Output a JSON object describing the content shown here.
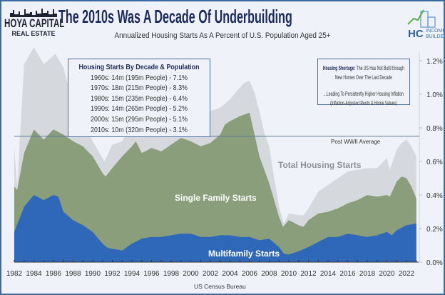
{
  "header": {
    "title": "The 2010s Was A Decade Of Underbuilding",
    "subtitle": "Annualized Housing Starts As A Percent of U.S. Population Aged 25+",
    "logo_left_line1": "HOYA CAPITAL",
    "logo_left_line2": "REAL ESTATE",
    "logo_right_hc": "HC",
    "logo_right_line1": "INCOME",
    "logo_right_line2": "BUILDER"
  },
  "decade_box": {
    "heading": "Housing Starts By Decade & Population",
    "rows": [
      "1960s: 14m (195m People) - 7.1%",
      "1970s: 18m (215m People) - 8.3%",
      "1980s: 15m (235m People) - 6.4%",
      "1990s: 14m (265m People) - 5.2%",
      "2000s: 15m (295m People) - 5.1%",
      "2010s: 10m (320m People) - 3.1%"
    ]
  },
  "shortage_box": {
    "bold": "Housing Shortage:",
    "line1": "The US Has Not Built Enough",
    "line2": "New Homes Over The Last Decade",
    "line3": "...Leading To Persistently Higher Housing Inflation",
    "line4": "(Inflation-Adjusted Rents & Home Values)"
  },
  "source": "US Census Bureau",
  "colors": {
    "total": "#d5d8dd",
    "single_family": "#8b9e7b",
    "multifamily": "#2f68b8",
    "title": "#1c2a5c",
    "average_line": "#5c7a99"
  },
  "chart_data": {
    "type": "area",
    "title": "The 2010s Was A Decade Of Underbuilding",
    "subtitle": "Annualized Housing Starts As A Percent of U.S. Population Aged 25+",
    "xlim": [
      1982,
      2023
    ],
    "ylim": [
      0,
      1.2
    ],
    "y_axis_position": "right",
    "x_ticks": [
      "1982",
      "1984",
      "1986",
      "1988",
      "1990",
      "1992",
      "1994",
      "1996",
      "1998",
      "2000",
      "2002",
      "2004",
      "2006",
      "2008",
      "2010",
      "2012",
      "2014",
      "2016",
      "2018",
      "2020",
      "2022"
    ],
    "y_ticks": [
      "0.0%",
      "0.2%",
      "0.4%",
      "0.6%",
      "0.8%",
      "1.0%",
      "1.2%"
    ],
    "reference_line": {
      "label": "Post WWII Average",
      "value": 0.75
    },
    "series": [
      {
        "name": "Total Housing Starts",
        "points": [
          [
            1982,
            0.68
          ],
          [
            1982.3,
            0.45
          ],
          [
            1983,
            1.18
          ],
          [
            1984,
            1.28
          ],
          [
            1985,
            1.18
          ],
          [
            1986.2,
            1.24
          ],
          [
            1987,
            1.16
          ],
          [
            1988,
            0.95
          ],
          [
            1989,
            0.85
          ],
          [
            1990,
            0.72
          ],
          [
            1991.2,
            0.6
          ],
          [
            1992,
            0.7
          ],
          [
            1993,
            0.72
          ],
          [
            1994,
            0.83
          ],
          [
            1995,
            0.78
          ],
          [
            1996,
            0.82
          ],
          [
            1997,
            0.82
          ],
          [
            1998,
            0.88
          ],
          [
            1999,
            0.9
          ],
          [
            2000,
            0.88
          ],
          [
            2001,
            0.87
          ],
          [
            2002,
            0.9
          ],
          [
            2003,
            0.92
          ],
          [
            2004,
            0.97
          ],
          [
            2005,
            1.04
          ],
          [
            2005.5,
            1.07
          ],
          [
            2006,
            1.08
          ],
          [
            2006.5,
            1.01
          ],
          [
            2007,
            0.9
          ],
          [
            2007.5,
            0.77
          ],
          [
            2008,
            0.69
          ],
          [
            2008.5,
            0.5
          ],
          [
            2009,
            0.33
          ],
          [
            2009.5,
            0.23
          ],
          [
            2010,
            0.29
          ],
          [
            2011,
            0.28
          ],
          [
            2011.5,
            0.28
          ],
          [
            2012,
            0.32
          ],
          [
            2013,
            0.42
          ],
          [
            2014,
            0.46
          ],
          [
            2015,
            0.5
          ],
          [
            2016,
            0.54
          ],
          [
            2017,
            0.55
          ],
          [
            2018,
            0.56
          ],
          [
            2019,
            0.56
          ],
          [
            2020,
            0.62
          ],
          [
            2020.3,
            0.55
          ],
          [
            2021,
            0.67
          ],
          [
            2021.5,
            0.71
          ],
          [
            2022,
            0.73
          ],
          [
            2022.5,
            0.69
          ],
          [
            2023,
            0.63
          ]
        ]
      },
      {
        "name": "Single Family Starts",
        "points": [
          [
            1982,
            0.45
          ],
          [
            1982.3,
            0.43
          ],
          [
            1983,
            0.65
          ],
          [
            1984,
            0.79
          ],
          [
            1985,
            0.73
          ],
          [
            1986,
            0.79
          ],
          [
            1987,
            0.76
          ],
          [
            1988,
            0.72
          ],
          [
            1989,
            0.69
          ],
          [
            1990,
            0.63
          ],
          [
            1991,
            0.53
          ],
          [
            1991.3,
            0.51
          ],
          [
            1992,
            0.56
          ],
          [
            1993,
            0.63
          ],
          [
            1994,
            0.69
          ],
          [
            1994.4,
            0.72
          ],
          [
            1995,
            0.65
          ],
          [
            1996,
            0.68
          ],
          [
            1997,
            0.66
          ],
          [
            1998,
            0.7
          ],
          [
            1999,
            0.74
          ],
          [
            2000,
            0.72
          ],
          [
            2001,
            0.69
          ],
          [
            2002,
            0.71
          ],
          [
            2003,
            0.76
          ],
          [
            2003.5,
            0.82
          ],
          [
            2004,
            0.84
          ],
          [
            2005,
            0.87
          ],
          [
            2006,
            0.89
          ],
          [
            2006.5,
            0.76
          ],
          [
            2007,
            0.63
          ],
          [
            2008,
            0.47
          ],
          [
            2009,
            0.27
          ],
          [
            2009.4,
            0.21
          ],
          [
            2010,
            0.25
          ],
          [
            2011,
            0.22
          ],
          [
            2011.5,
            0.21
          ],
          [
            2012,
            0.25
          ],
          [
            2013,
            0.29
          ],
          [
            2014,
            0.3
          ],
          [
            2015,
            0.32
          ],
          [
            2016,
            0.35
          ],
          [
            2017,
            0.37
          ],
          [
            2018,
            0.4
          ],
          [
            2019,
            0.39
          ],
          [
            2020,
            0.4
          ],
          [
            2020.3,
            0.39
          ],
          [
            2021,
            0.48
          ],
          [
            2021.5,
            0.51
          ],
          [
            2022,
            0.5
          ],
          [
            2022.5,
            0.45
          ],
          [
            2023,
            0.38
          ]
        ]
      },
      {
        "name": "Multifamily Starts",
        "points": [
          [
            1982,
            0.18
          ],
          [
            1983,
            0.33
          ],
          [
            1984,
            0.4
          ],
          [
            1985,
            0.37
          ],
          [
            1986,
            0.4
          ],
          [
            1986.5,
            0.39
          ],
          [
            1987,
            0.3
          ],
          [
            1988,
            0.25
          ],
          [
            1989,
            0.22
          ],
          [
            1990,
            0.18
          ],
          [
            1991,
            0.11
          ],
          [
            1991.5,
            0.085
          ],
          [
            1992,
            0.08
          ],
          [
            1993,
            0.07
          ],
          [
            1994,
            0.11
          ],
          [
            1995,
            0.14
          ],
          [
            1996,
            0.15
          ],
          [
            1997,
            0.15
          ],
          [
            1998,
            0.16
          ],
          [
            1999,
            0.17
          ],
          [
            2000,
            0.17
          ],
          [
            2001,
            0.15
          ],
          [
            2002,
            0.15
          ],
          [
            2003,
            0.16
          ],
          [
            2004,
            0.16
          ],
          [
            2005,
            0.15
          ],
          [
            2006,
            0.15
          ],
          [
            2007,
            0.13
          ],
          [
            2008,
            0.14
          ],
          [
            2009,
            0.09
          ],
          [
            2009.5,
            0.05
          ],
          [
            2010,
            0.045
          ],
          [
            2011,
            0.065
          ],
          [
            2012,
            0.09
          ],
          [
            2013,
            0.12
          ],
          [
            2014,
            0.15
          ],
          [
            2015,
            0.15
          ],
          [
            2016,
            0.17
          ],
          [
            2017,
            0.16
          ],
          [
            2018,
            0.15
          ],
          [
            2019,
            0.16
          ],
          [
            2020,
            0.18
          ],
          [
            2020.5,
            0.16
          ],
          [
            2021,
            0.19
          ],
          [
            2022,
            0.22
          ],
          [
            2023,
            0.23
          ]
        ]
      }
    ]
  }
}
